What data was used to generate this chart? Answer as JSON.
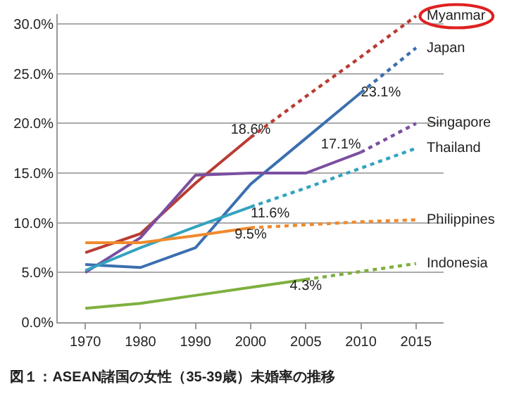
{
  "chart_data": {
    "type": "line",
    "title": "図１：ASEAN諸国の女性（35-39歳）未婚率の推移",
    "categories": [
      "1970",
      "1980",
      "1990",
      "2000",
      "2005",
      "2010",
      "2015"
    ],
    "ylim": [
      0,
      31
    ],
    "yticks": [
      {
        "value": 0,
        "label": "0.0%"
      },
      {
        "value": 5,
        "label": "5.0%"
      },
      {
        "value": 10,
        "label": "10.0%"
      },
      {
        "value": 15,
        "label": "15.0%"
      },
      {
        "value": 20,
        "label": "20.0%"
      },
      {
        "value": 25,
        "label": "25.0%"
      },
      {
        "value": 30,
        "label": "30.0%"
      }
    ],
    "grid": "y",
    "legend": false,
    "marker": "none",
    "line_style": "solid",
    "series": [
      {
        "color": "#b83c33",
        "values": [
          7.0,
          8.9,
          14.0,
          18.6,
          null,
          null,
          null
        ],
        "value_labels": [
          null,
          null,
          null,
          "18.6%",
          null,
          null,
          null
        ]
      },
      {
        "color": "#3b6fb0",
        "values": [
          5.8,
          5.5,
          7.5,
          13.9,
          18.5,
          23.1,
          null
        ],
        "value_labels": [
          null,
          null,
          null,
          null,
          null,
          "23.1%",
          null
        ]
      },
      {
        "color": "#7a4fa0",
        "values": [
          5.0,
          8.5,
          14.8,
          15.0,
          15.0,
          17.1,
          null
        ],
        "value_labels": [
          null,
          null,
          null,
          null,
          null,
          "17.1%",
          null
        ]
      },
      {
        "color": "#33a3bf",
        "values": [
          5.2,
          7.5,
          9.6,
          11.6,
          null,
          null,
          null
        ],
        "value_labels": [
          null,
          null,
          null,
          "11.6%",
          null,
          null,
          null
        ]
      },
      {
        "color": "#f08a2e",
        "values": [
          8.0,
          8.0,
          8.7,
          9.5,
          null,
          null,
          null
        ],
        "value_labels": [
          null,
          null,
          null,
          "9.5%",
          null,
          null,
          null
        ]
      },
      {
        "color": "#7fb03f",
        "values": [
          1.4,
          1.9,
          2.7,
          3.5,
          4.3,
          null,
          null
        ],
        "value_labels": [
          null,
          null,
          null,
          null,
          "4.3%",
          null,
          null
        ]
      },
      {
        "name": "Myanmar",
        "color": "#b83c33",
        "line_style": "dotted",
        "values": [
          null,
          null,
          null,
          18.6,
          22.7,
          26.7,
          30.8
        ]
      },
      {
        "name": "Japan",
        "color": "#3b6fb0",
        "line_style": "dotted",
        "values": [
          null,
          null,
          null,
          null,
          null,
          23.1,
          27.6
        ]
      },
      {
        "name": "Singapore",
        "color": "#7a4fa0",
        "line_style": "dotted",
        "values": [
          null,
          null,
          null,
          null,
          null,
          17.1,
          20.0
        ]
      },
      {
        "name": "Thailand",
        "color": "#33a3bf",
        "line_style": "dotted",
        "values": [
          null,
          null,
          null,
          11.6,
          13.5,
          15.5,
          17.5
        ]
      },
      {
        "name": "Philippines",
        "color": "#f08a2e",
        "line_style": "dotted",
        "values": [
          null,
          null,
          null,
          9.5,
          9.8,
          10.1,
          10.3
        ]
      },
      {
        "name": "Indonesia",
        "color": "#7fb03f",
        "line_style": "dotted",
        "values": [
          null,
          null,
          null,
          null,
          4.3,
          5.1,
          5.9
        ]
      }
    ]
  }
}
